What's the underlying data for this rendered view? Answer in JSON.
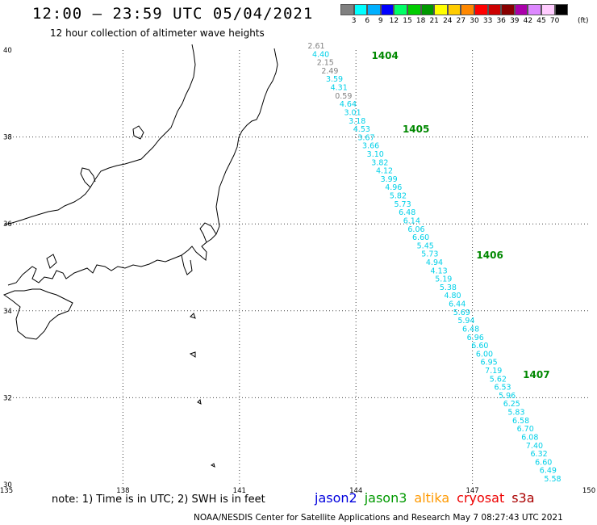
{
  "title": "12:00 – 23:59 UTC 05/04/2021",
  "subtitle": "12 hour collection of altimeter wave heights",
  "legend": {
    "unit": "(ft)",
    "bins": [
      {
        "label": "3",
        "color": "#808080"
      },
      {
        "label": "6",
        "color": "#00ffff"
      },
      {
        "label": "9",
        "color": "#00b0ff"
      },
      {
        "label": "12",
        "color": "#0000ff"
      },
      {
        "label": "15",
        "color": "#00ff66"
      },
      {
        "label": "18",
        "color": "#00cc00"
      },
      {
        "label": "21",
        "color": "#009900"
      },
      {
        "label": "24",
        "color": "#ffff00"
      },
      {
        "label": "27",
        "color": "#ffcc00"
      },
      {
        "label": "30",
        "color": "#ff8800"
      },
      {
        "label": "33",
        "color": "#ff0000"
      },
      {
        "label": "36",
        "color": "#cc0000"
      },
      {
        "label": "39",
        "color": "#880000"
      },
      {
        "label": "42",
        "color": "#aa00aa"
      },
      {
        "label": "45",
        "color": "#dd88ff"
      },
      {
        "label": "70",
        "color": "#ffccff"
      },
      {
        "label": "",
        "color": "#000000"
      }
    ]
  },
  "map": {
    "lon_range": [
      135,
      150
    ],
    "lat_range": [
      30,
      40
    ],
    "lon_ticks": [
      "135",
      "138",
      "141",
      "144",
      "147",
      "150"
    ],
    "lat_ticks": [
      "40",
      "38",
      "36",
      "34",
      "32",
      "30"
    ],
    "grid": "dotted",
    "coast_color": "#000000"
  },
  "track": {
    "color_low": "#00d0e8",
    "color_gray": "#808080",
    "time_label_color": "#008800",
    "time_labels": [
      {
        "text": "1404",
        "lat": 39.8,
        "lon": 144.4
      },
      {
        "text": "1405",
        "lat": 38.1,
        "lon": 145.2
      },
      {
        "text": "1406",
        "lat": 35.2,
        "lon": 147.1
      },
      {
        "text": "1407",
        "lat": 32.45,
        "lon": 148.3
      }
    ],
    "values": [
      {
        "text": "2.61",
        "gray": true
      },
      {
        "text": "4.40",
        "gray": false
      },
      {
        "text": "2.15",
        "gray": true
      },
      {
        "text": "2.49",
        "gray": true
      },
      {
        "text": "3.59",
        "gray": false
      },
      {
        "text": "4.31",
        "gray": false
      },
      {
        "text": "0.59",
        "gray": true
      },
      {
        "text": "4.64",
        "gray": false
      },
      {
        "text": "3.01",
        "gray": false
      },
      {
        "text": "3.18",
        "gray": false
      },
      {
        "text": "4.53",
        "gray": false
      },
      {
        "text": "3.67",
        "gray": false
      },
      {
        "text": "3.66",
        "gray": false
      },
      {
        "text": "3.10",
        "gray": false
      },
      {
        "text": "3.82",
        "gray": false
      },
      {
        "text": "4.12",
        "gray": false
      },
      {
        "text": "3.99",
        "gray": false
      },
      {
        "text": "4.96",
        "gray": false
      },
      {
        "text": "5.82",
        "gray": false
      },
      {
        "text": "5.73",
        "gray": false
      },
      {
        "text": "6.48",
        "gray": false
      },
      {
        "text": "6.14",
        "gray": false
      },
      {
        "text": "6.06",
        "gray": false
      },
      {
        "text": "6.60",
        "gray": false
      },
      {
        "text": "5.45",
        "gray": false
      },
      {
        "text": "5.73",
        "gray": false
      },
      {
        "text": "4.94",
        "gray": false
      },
      {
        "text": "4.13",
        "gray": false
      },
      {
        "text": "5.19",
        "gray": false
      },
      {
        "text": "5.38",
        "gray": false
      },
      {
        "text": "4.80",
        "gray": false
      },
      {
        "text": "6.44",
        "gray": false
      },
      {
        "text": "5.69",
        "gray": false
      },
      {
        "text": "5.94",
        "gray": false
      },
      {
        "text": "6.48",
        "gray": false
      },
      {
        "text": "6.96",
        "gray": false
      },
      {
        "text": "6.60",
        "gray": false
      },
      {
        "text": "6.00",
        "gray": false
      },
      {
        "text": "6.95",
        "gray": false
      },
      {
        "text": "7.19",
        "gray": false
      },
      {
        "text": "5.62",
        "gray": false
      },
      {
        "text": "6.53",
        "gray": false
      },
      {
        "text": "5.96",
        "gray": false
      },
      {
        "text": "6.25",
        "gray": false
      },
      {
        "text": "5.83",
        "gray": false
      },
      {
        "text": "6.58",
        "gray": false
      },
      {
        "text": "6.70",
        "gray": false
      },
      {
        "text": "6.08",
        "gray": false
      },
      {
        "text": "7.40",
        "gray": false
      },
      {
        "text": "6.32",
        "gray": false
      },
      {
        "text": "6.60",
        "gray": false
      },
      {
        "text": "6.49",
        "gray": false
      },
      {
        "text": "5.58",
        "gray": false
      }
    ]
  },
  "footer": {
    "note": "note:  1) Time is in UTC;  2) SWH is in feet",
    "satellites": [
      {
        "name": "jason2",
        "color": "#0000dd"
      },
      {
        "name": "jason3",
        "color": "#009900"
      },
      {
        "name": "altika",
        "color": "#ff9900"
      },
      {
        "name": "cryosat",
        "color": "#ee0000"
      },
      {
        "name": "s3a",
        "color": "#aa0000"
      }
    ],
    "credit": "NOAA/NESDIS Center for Satellite Applications and Research    May  7 08:27:43 UTC 2021"
  }
}
